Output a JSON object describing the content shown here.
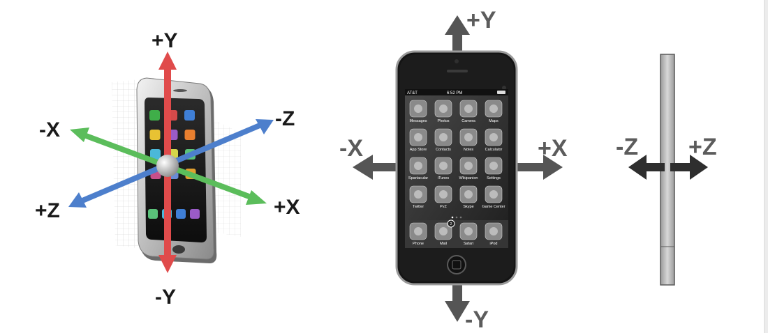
{
  "colors": {
    "y_axis": "#e04b4b",
    "x_axis": "#5bbd5b",
    "z_axis": "#4d7fcc",
    "arrow_grey": "#555555",
    "label_dark": "#1a1a1a"
  },
  "left_diagram": {
    "labels": {
      "pos_y": "+Y",
      "neg_y": "-Y",
      "pos_x": "+X",
      "neg_x": "-X",
      "pos_z": "+Z",
      "neg_z": "-Z"
    },
    "app_icon_colors": [
      "#3fae49",
      "#d44a4a",
      "#3f7fd6",
      "#e8c233",
      "#9a5bc7",
      "#e87f2f",
      "#4bb8d9",
      "#d4d44a",
      "#5ac27a",
      "#c74f8a",
      "#6a8bd6",
      "#e0a02f"
    ]
  },
  "middle_diagram": {
    "labels": {
      "pos_y": "+Y",
      "neg_y": "-Y",
      "pos_x": "+X",
      "neg_x": "-X"
    },
    "status_bar": {
      "carrier": "AT&T",
      "time": "6:52 PM"
    },
    "apps": [
      {
        "label": "Messages",
        "icon": "messages-icon"
      },
      {
        "label": "Photos",
        "icon": "photos-icon"
      },
      {
        "label": "Camera",
        "icon": "camera-icon"
      },
      {
        "label": "Maps",
        "icon": "maps-icon"
      },
      {
        "label": "App Store",
        "icon": "app-store-icon"
      },
      {
        "label": "Contacts",
        "icon": "contacts-icon"
      },
      {
        "label": "Notes",
        "icon": "notes-icon"
      },
      {
        "label": "Calculator",
        "icon": "calculator-icon"
      },
      {
        "label": "Spartacular",
        "icon": "spartacular-icon"
      },
      {
        "label": "iTunes",
        "icon": "itunes-icon"
      },
      {
        "label": "Wikipanion",
        "icon": "wikipanion-icon"
      },
      {
        "label": "Settings",
        "icon": "settings-icon"
      },
      {
        "label": "Twitter",
        "icon": "twitter-icon"
      },
      {
        "label": "PvZ",
        "icon": "pvz-icon"
      },
      {
        "label": "Skype",
        "icon": "skype-icon"
      },
      {
        "label": "Game Center",
        "icon": "game-center-icon"
      }
    ],
    "dock": [
      {
        "label": "Phone",
        "icon": "phone-icon"
      },
      {
        "label": "Mail",
        "icon": "mail-icon",
        "badge": "2"
      },
      {
        "label": "Safari",
        "icon": "safari-icon"
      },
      {
        "label": "iPod",
        "icon": "ipod-icon"
      }
    ]
  },
  "right_diagram": {
    "labels": {
      "neg_z": "-Z",
      "pos_z": "+Z"
    }
  }
}
